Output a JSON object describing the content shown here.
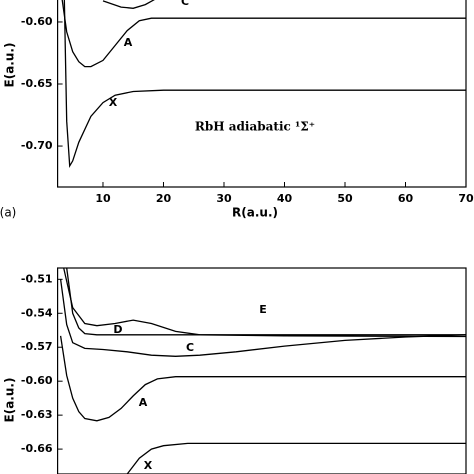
{
  "chart_data": [
    {
      "type": "line",
      "annotation": "RbH adiabatic ¹Σ⁺",
      "panel_label": "(a)",
      "x_label": "R(a.u.)",
      "y_label": "E(a.u.)",
      "xlim": [
        2.5,
        70
      ],
      "ylim": [
        -0.733,
        -0.5823
      ],
      "xticks": [
        10,
        20,
        30,
        40,
        50,
        60,
        70
      ],
      "yticks": [
        {
          "value": -0.6,
          "label": "-0.60"
        },
        -0.65,
        {
          "value": -0.7,
          "label": "-0.70"
        }
      ],
      "series": [
        {
          "name": "C",
          "color": "#000000",
          "x": [
            10,
            13,
            15,
            17,
            18.5
          ],
          "values": [
            -0.583,
            -0.588,
            -0.589,
            -0.586,
            -0.582
          ]
        },
        {
          "name": "A",
          "color": "#000000",
          "x": [
            3.2,
            4,
            5,
            6,
            7,
            8,
            10,
            12,
            14,
            16,
            18,
            70
          ],
          "values": [
            -0.58,
            -0.608,
            -0.624,
            -0.632,
            -0.636,
            -0.636,
            -0.631,
            -0.619,
            -0.607,
            -0.599,
            -0.597,
            -0.597
          ]
        },
        {
          "name": "X",
          "color": "#000000",
          "x": [
            3.6,
            4,
            4.5,
            5,
            6,
            8,
            10,
            12,
            15,
            20,
            70
          ],
          "values": [
            -0.58,
            -0.68,
            -0.716,
            -0.712,
            -0.697,
            -0.676,
            -0.665,
            -0.659,
            -0.656,
            -0.655,
            -0.655
          ]
        }
      ]
    },
    {
      "type": "line",
      "y_label": "E(a.u.)",
      "xlim": [
        2.5,
        70
      ],
      "ylim": [
        -0.682,
        -0.5
      ],
      "yticks": [
        -0.51,
        -0.54,
        -0.57,
        {
          "value": -0.6,
          "label": "-0.60"
        },
        -0.63,
        -0.66
      ],
      "series": [
        {
          "name": "E",
          "color": "#000000",
          "x": [
            3.5,
            5,
            7,
            9,
            12,
            15,
            18,
            22,
            26,
            40,
            70
          ],
          "values": [
            -0.5,
            -0.535,
            -0.549,
            -0.551,
            -0.549,
            -0.546,
            -0.549,
            -0.556,
            -0.559,
            -0.56,
            -0.5605
          ]
        },
        {
          "name": "D",
          "color": "#000000",
          "x": [
            4,
            5,
            6,
            7,
            9,
            70
          ],
          "values": [
            -0.5,
            -0.54,
            -0.553,
            -0.558,
            -0.559,
            -0.559
          ]
        },
        {
          "name": "C",
          "color": "#000000",
          "x": [
            3,
            4,
            5,
            7,
            10,
            14,
            18,
            22,
            26,
            32,
            40,
            50,
            60,
            70
          ],
          "values": [
            -0.51,
            -0.55,
            -0.566,
            -0.571,
            -0.572,
            -0.574,
            -0.577,
            -0.578,
            -0.577,
            -0.574,
            -0.569,
            -0.564,
            -0.561,
            -0.559
          ]
        },
        {
          "name": "A",
          "color": "#000000",
          "x": [
            3,
            4,
            5,
            6,
            7,
            9,
            11,
            13,
            15,
            17,
            19,
            22,
            70
          ],
          "values": [
            -0.56,
            -0.595,
            -0.615,
            -0.627,
            -0.633,
            -0.635,
            -0.632,
            -0.624,
            -0.613,
            -0.603,
            -0.598,
            -0.596,
            -0.596
          ]
        },
        {
          "name": "X",
          "color": "#000000",
          "x": [
            14,
            16,
            18,
            20,
            24,
            70
          ],
          "values": [
            -0.682,
            -0.668,
            -0.66,
            -0.657,
            -0.655,
            -0.655
          ]
        }
      ]
    }
  ]
}
